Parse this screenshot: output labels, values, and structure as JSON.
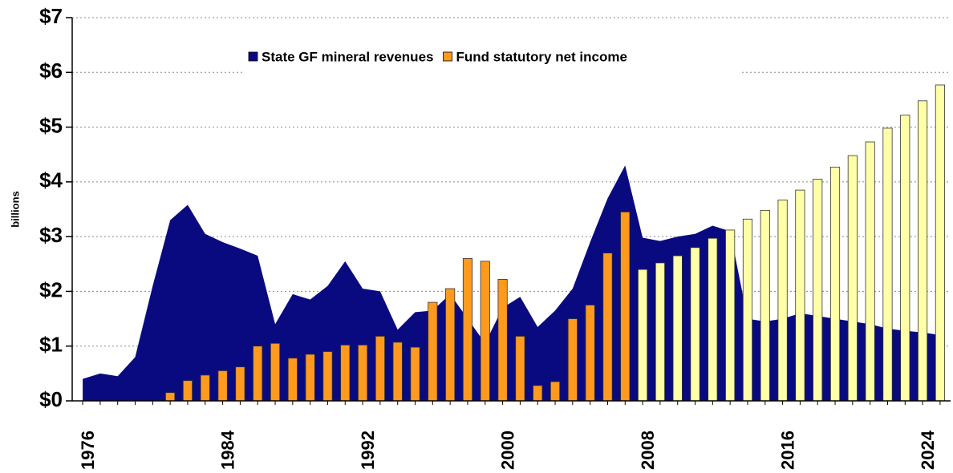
{
  "chart_data": {
    "type": "bar",
    "y_label": "billions",
    "x": [
      1976,
      1977,
      1978,
      1979,
      1980,
      1981,
      1982,
      1983,
      1984,
      1985,
      1986,
      1987,
      1988,
      1989,
      1990,
      1991,
      1992,
      1993,
      1994,
      1995,
      1996,
      1997,
      1998,
      1999,
      2000,
      2001,
      2002,
      2003,
      2004,
      2005,
      2006,
      2007,
      2008,
      2009,
      2010,
      2011,
      2012,
      2013,
      2014,
      2015,
      2016,
      2017,
      2018,
      2019,
      2020,
      2021,
      2022,
      2023,
      2024,
      2025
    ],
    "xlim": [
      1975.4,
      2025.6
    ],
    "xticks": [
      1976,
      1984,
      1992,
      2000,
      2008,
      2016,
      2024
    ],
    "ylim": [
      0,
      7
    ],
    "yticks": [
      {
        "value": 0,
        "label": "$0"
      },
      {
        "value": 1,
        "label": "$1"
      },
      {
        "value": 2,
        "label": "$2"
      },
      {
        "value": 3,
        "label": "$3"
      },
      {
        "value": 4,
        "label": "$4"
      },
      {
        "value": 5,
        "label": "$5"
      },
      {
        "value": 6,
        "label": "$6"
      },
      {
        "value": 7,
        "label": "$7"
      }
    ],
    "grid": true,
    "legend": "top",
    "series": [
      {
        "name": "State GF mineral revenues",
        "type": "area",
        "color": "#0a0a80",
        "values": [
          0.4,
          0.5,
          0.45,
          0.8,
          2.1,
          3.3,
          3.58,
          3.05,
          2.9,
          2.78,
          2.65,
          1.4,
          1.95,
          1.85,
          2.1,
          2.55,
          2.05,
          2.0,
          1.3,
          1.62,
          1.65,
          1.95,
          1.5,
          1.05,
          1.7,
          1.9,
          1.35,
          1.65,
          2.05,
          2.9,
          3.7,
          4.3,
          2.98,
          2.92,
          3.0,
          3.05,
          3.2,
          3.1,
          1.5,
          1.45,
          1.5,
          1.6,
          1.55,
          1.5,
          1.45,
          1.4,
          1.32,
          1.28,
          1.25,
          1.2
        ]
      },
      {
        "name": "Fund statutory net income",
        "type": "bar",
        "color": "#ff9a1f",
        "values": [
          null,
          null,
          null,
          null,
          null,
          0.15,
          0.37,
          0.47,
          0.55,
          0.62,
          1.0,
          1.05,
          0.78,
          0.85,
          0.9,
          1.02,
          1.02,
          1.18,
          1.07,
          0.98,
          1.8,
          2.05,
          2.6,
          2.55,
          2.22,
          1.18,
          0.28,
          0.35,
          1.5,
          1.75,
          2.7,
          3.45,
          2.4,
          2.52,
          2.65,
          2.8,
          2.97,
          3.12,
          3.32,
          3.48,
          3.67,
          3.85,
          4.05,
          4.27,
          4.48,
          4.73,
          4.98,
          5.22,
          5.48,
          5.77
        ],
        "colors": [
          "#ff9a1f",
          "#ff9a1f",
          "#ff9a1f",
          "#ff9a1f",
          "#ff9a1f",
          "#ff9a1f",
          "#ff9a1f",
          "#ff9a1f",
          "#ff9a1f",
          "#ff9a1f",
          "#ff9a1f",
          "#ff9a1f",
          "#ff9a1f",
          "#ff9a1f",
          "#ff9a1f",
          "#ff9a1f",
          "#ff9a1f",
          "#ff9a1f",
          "#ff9a1f",
          "#ff9a1f",
          "#ff9a1f",
          "#ff9a1f",
          "#ff9a1f",
          "#ff9a1f",
          "#ff9a1f",
          "#ff9a1f",
          "#ff9a1f",
          "#ff9a1f",
          "#ff9a1f",
          "#ff9a1f",
          "#ff9a1f",
          "#ff9a1f",
          "#ffffa8",
          "#ffffa8",
          "#ffffa8",
          "#ffffa8",
          "#ffffa8",
          "#ffffa8",
          "#ffffa8",
          "#ffffa8",
          "#ffffa8",
          "#ffffa8",
          "#ffffa8",
          "#ffffa8",
          "#ffffa8",
          "#ffffa8",
          "#ffffa8",
          "#ffffa8",
          "#ffffa8",
          "#ffffa8"
        ]
      }
    ]
  }
}
